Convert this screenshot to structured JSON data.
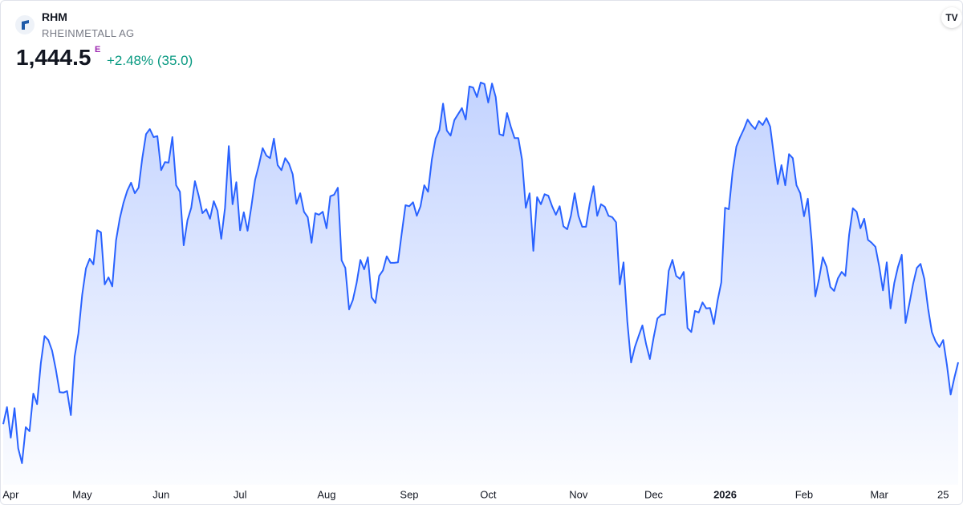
{
  "header": {
    "symbol": "RHM",
    "name": "RHEINMETALL AG",
    "price": "1,444.5",
    "marker": "E",
    "change": "+2.48% (35.0)"
  },
  "chart_data": {
    "type": "area",
    "color": "#2962ff",
    "ylim": [
      1200,
      2100
    ],
    "xlim": [
      0,
      254
    ],
    "xticks": [
      {
        "value": 2,
        "label": "Apr"
      },
      {
        "value": 21,
        "label": "May"
      },
      {
        "value": 42,
        "label": "Jun"
      },
      {
        "value": 63,
        "label": "Jul"
      },
      {
        "value": 86,
        "label": "Aug"
      },
      {
        "value": 108,
        "label": "Sep"
      },
      {
        "value": 129,
        "label": "Oct"
      },
      {
        "value": 153,
        "label": "Nov"
      },
      {
        "value": 173,
        "label": "Dec"
      },
      {
        "value": 192,
        "label": "2026"
      },
      {
        "value": 213,
        "label": "Feb"
      },
      {
        "value": 233,
        "label": "Mar"
      },
      {
        "value": 250,
        "label": "25"
      }
    ],
    "values": [
      1321,
      1355,
      1294,
      1353,
      1273,
      1243,
      1315,
      1307,
      1382,
      1361,
      1443,
      1497,
      1489,
      1468,
      1430,
      1385,
      1384,
      1387,
      1339,
      1456,
      1502,
      1579,
      1632,
      1651,
      1640,
      1708,
      1704,
      1600,
      1614,
      1596,
      1688,
      1731,
      1763,
      1787,
      1803,
      1782,
      1793,
      1852,
      1900,
      1910,
      1894,
      1896,
      1828,
      1844,
      1843,
      1894,
      1798,
      1785,
      1678,
      1728,
      1753,
      1806,
      1777,
      1742,
      1750,
      1731,
      1766,
      1747,
      1691,
      1753,
      1876,
      1760,
      1804,
      1708,
      1744,
      1707,
      1755,
      1809,
      1838,
      1872,
      1857,
      1852,
      1891,
      1838,
      1828,
      1852,
      1841,
      1820,
      1761,
      1782,
      1745,
      1734,
      1683,
      1742,
      1739,
      1745,
      1712,
      1776,
      1779,
      1793,
      1648,
      1633,
      1550,
      1569,
      1603,
      1649,
      1630,
      1654,
      1574,
      1563,
      1617,
      1628,
      1656,
      1643,
      1643,
      1644,
      1702,
      1758,
      1756,
      1764,
      1737,
      1756,
      1798,
      1785,
      1849,
      1891,
      1908,
      1961,
      1907,
      1897,
      1928,
      1940,
      1952,
      1929,
      1995,
      1993,
      1974,
      2003,
      2000,
      1963,
      2001,
      1974,
      1900,
      1897,
      1942,
      1915,
      1892,
      1892,
      1849,
      1753,
      1782,
      1667,
      1774,
      1760,
      1780,
      1777,
      1756,
      1739,
      1756,
      1716,
      1710,
      1737,
      1782,
      1737,
      1715,
      1715,
      1761,
      1796,
      1737,
      1760,
      1755,
      1737,
      1734,
      1724,
      1600,
      1644,
      1526,
      1444,
      1475,
      1497,
      1518,
      1481,
      1451,
      1494,
      1532,
      1539,
      1540,
      1627,
      1649,
      1617,
      1611,
      1625,
      1513,
      1505,
      1547,
      1544,
      1564,
      1552,
      1553,
      1521,
      1568,
      1604,
      1753,
      1750,
      1825,
      1875,
      1894,
      1910,
      1929,
      1918,
      1910,
      1926,
      1918,
      1932,
      1915,
      1857,
      1800,
      1838,
      1798,
      1860,
      1852,
      1798,
      1782,
      1736,
      1771,
      1689,
      1576,
      1612,
      1654,
      1635,
      1595,
      1587,
      1612,
      1625,
      1617,
      1699,
      1752,
      1745,
      1712,
      1731,
      1689,
      1683,
      1675,
      1636,
      1588,
      1644,
      1552,
      1603,
      1635,
      1659,
      1523,
      1561,
      1601,
      1633,
      1641,
      1611,
      1552,
      1505,
      1486,
      1475,
      1489,
      1440,
      1380,
      1414,
      1444.5
    ]
  }
}
